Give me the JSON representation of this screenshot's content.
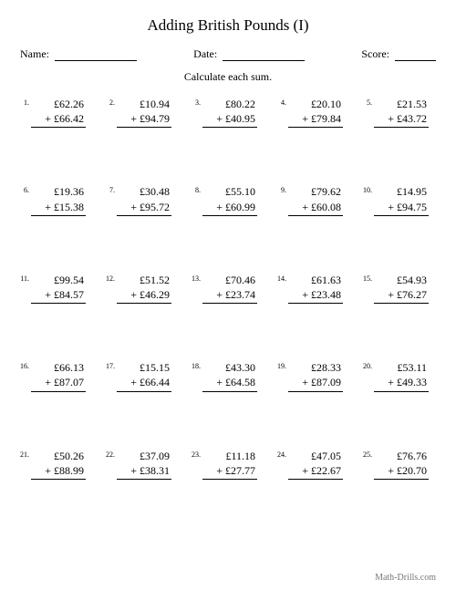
{
  "title": "Adding British Pounds (I)",
  "header": {
    "name_label": "Name:",
    "date_label": "Date:",
    "score_label": "Score:"
  },
  "instruction": "Calculate each sum.",
  "currency": "£",
  "operator": "+",
  "footer": "Math-Drills.com",
  "colors": {
    "background": "#ffffff",
    "text": "#000000",
    "footer_text": "#777777",
    "rule": "#000000"
  },
  "typography": {
    "title_fontsize": 17,
    "body_fontsize": 12,
    "number_fontsize": 8,
    "footer_fontsize": 10,
    "font_family": "Times New Roman"
  },
  "layout": {
    "cols": 5,
    "rows": 5
  },
  "problems": [
    {
      "n": "1.",
      "a": "62.26",
      "b": "66.42"
    },
    {
      "n": "2.",
      "a": "10.94",
      "b": "94.79"
    },
    {
      "n": "3.",
      "a": "80.22",
      "b": "40.95"
    },
    {
      "n": "4.",
      "a": "20.10",
      "b": "79.84"
    },
    {
      "n": "5.",
      "a": "21.53",
      "b": "43.72"
    },
    {
      "n": "6.",
      "a": "19.36",
      "b": "15.38"
    },
    {
      "n": "7.",
      "a": "30.48",
      "b": "95.72"
    },
    {
      "n": "8.",
      "a": "55.10",
      "b": "60.99"
    },
    {
      "n": "9.",
      "a": "79.62",
      "b": "60.08"
    },
    {
      "n": "10.",
      "a": "14.95",
      "b": "94.75"
    },
    {
      "n": "11.",
      "a": "99.54",
      "b": "84.57"
    },
    {
      "n": "12.",
      "a": "51.52",
      "b": "46.29"
    },
    {
      "n": "13.",
      "a": "70.46",
      "b": "23.74"
    },
    {
      "n": "14.",
      "a": "61.63",
      "b": "23.48"
    },
    {
      "n": "15.",
      "a": "54.93",
      "b": "76.27"
    },
    {
      "n": "16.",
      "a": "66.13",
      "b": "87.07"
    },
    {
      "n": "17.",
      "a": "15.15",
      "b": "66.44"
    },
    {
      "n": "18.",
      "a": "43.30",
      "b": "64.58"
    },
    {
      "n": "19.",
      "a": "28.33",
      "b": "87.09"
    },
    {
      "n": "20.",
      "a": "53.11",
      "b": "49.33"
    },
    {
      "n": "21.",
      "a": "50.26",
      "b": "88.99"
    },
    {
      "n": "22.",
      "a": "37.09",
      "b": "38.31"
    },
    {
      "n": "23.",
      "a": "11.18",
      "b": "27.77"
    },
    {
      "n": "24.",
      "a": "47.05",
      "b": "22.67"
    },
    {
      "n": "25.",
      "a": "76.76",
      "b": "20.70"
    }
  ]
}
